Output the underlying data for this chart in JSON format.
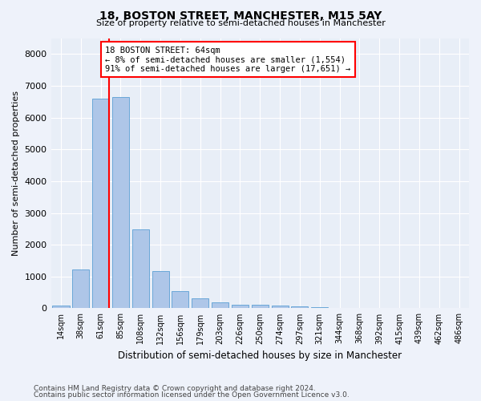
{
  "title1": "18, BOSTON STREET, MANCHESTER, M15 5AY",
  "title2": "Size of property relative to semi-detached houses in Manchester",
  "xlabel": "Distribution of semi-detached houses by size in Manchester",
  "ylabel": "Number of semi-detached properties",
  "footer1": "Contains HM Land Registry data © Crown copyright and database right 2024.",
  "footer2": "Contains public sector information licensed under the Open Government Licence v3.0.",
  "categories": [
    "14sqm",
    "38sqm",
    "61sqm",
    "85sqm",
    "108sqm",
    "132sqm",
    "156sqm",
    "179sqm",
    "203sqm",
    "226sqm",
    "250sqm",
    "274sqm",
    "297sqm",
    "321sqm",
    "344sqm",
    "368sqm",
    "392sqm",
    "415sqm",
    "439sqm",
    "462sqm",
    "486sqm"
  ],
  "values": [
    80,
    1220,
    6600,
    6650,
    2480,
    1170,
    550,
    310,
    175,
    120,
    105,
    80,
    55,
    25,
    15,
    10,
    5,
    5,
    3,
    2,
    2
  ],
  "bar_color": "#aec6e8",
  "bar_edge_color": "#5a9fd4",
  "ylim": [
    0,
    8500
  ],
  "yticks": [
    0,
    1000,
    2000,
    3000,
    4000,
    5000,
    6000,
    7000,
    8000
  ],
  "annotation_title": "18 BOSTON STREET: 64sqm",
  "annotation_line1": "← 8% of semi-detached houses are smaller (1,554)",
  "annotation_line2": "91% of semi-detached houses are larger (17,651) →",
  "vline_x_index": 2,
  "box_color": "red",
  "bg_color": "#e8eef7",
  "fig_bg_color": "#eef2fa"
}
